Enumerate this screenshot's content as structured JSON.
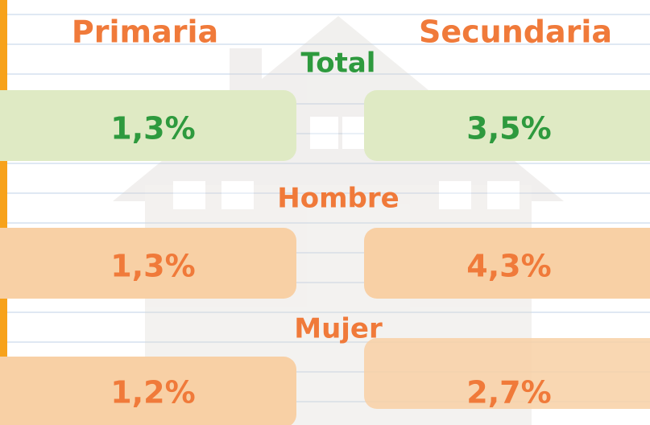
{
  "columns": [
    "Primaria",
    "Secundaria"
  ],
  "rows": [
    {
      "label": "Total",
      "values": [
        "1,3%",
        "3,5%"
      ]
    },
    {
      "label": "Hombre",
      "values": [
        "1,3%",
        "4,3%"
      ]
    },
    {
      "label": "Mujer",
      "values": [
        "1,2%",
        "2,7%"
      ]
    }
  ]
}
